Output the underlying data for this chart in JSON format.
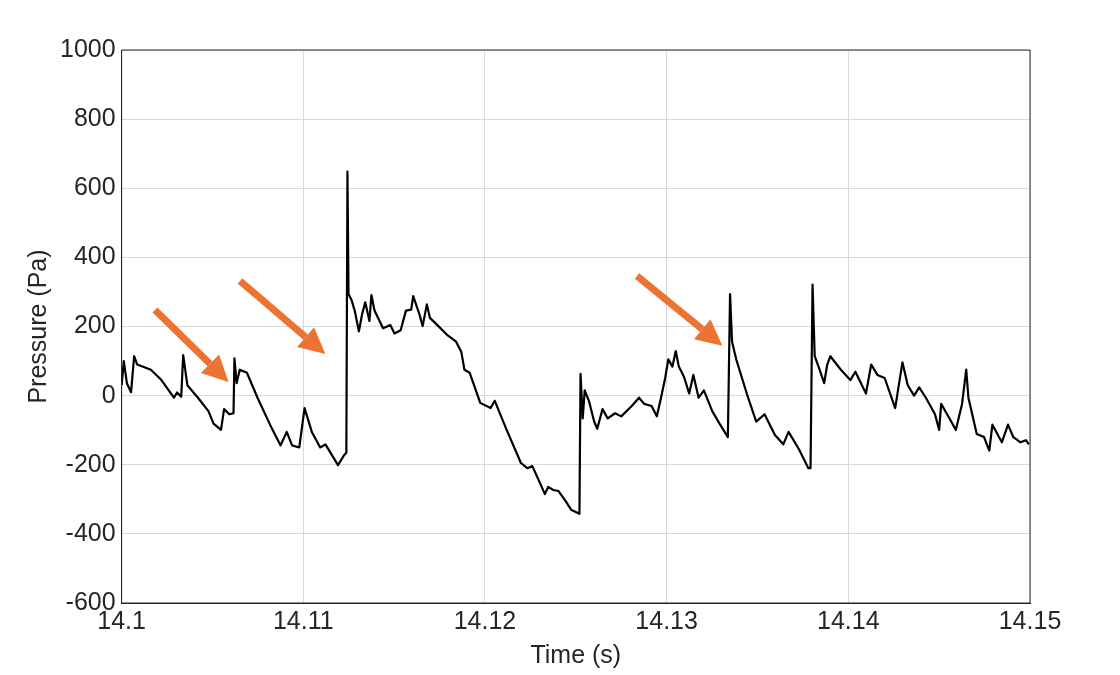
{
  "chart_data": {
    "type": "line",
    "xlabel": "Time (s)",
    "ylabel": "Pressure (Pa)",
    "xlim": [
      14.1,
      14.15
    ],
    "xticks": [
      14.1,
      14.11,
      14.12,
      14.13,
      14.14,
      14.15
    ],
    "ylim": [
      -600,
      1000
    ],
    "yticks": [
      -600,
      -400,
      -200,
      0,
      200,
      400,
      600,
      800,
      1000
    ],
    "grid": true,
    "legend": false,
    "marker": "none",
    "line_style": "solid",
    "series": [
      {
        "color": "#000000",
        "x": [
          14.1,
          14.10012,
          14.10029,
          14.10052,
          14.10069,
          14.10086,
          14.10161,
          14.10219,
          14.10288,
          14.10305,
          14.10328,
          14.10339,
          14.10362,
          14.1042,
          14.10478,
          14.10506,
          14.10547,
          14.10564,
          14.10593,
          14.10616,
          14.10621,
          14.10633,
          14.1065,
          14.1069,
          14.10748,
          14.10817,
          14.10875,
          14.10909,
          14.10938,
          14.10978,
          14.11007,
          14.11047,
          14.11093,
          14.11122,
          14.11191,
          14.11226,
          14.11237,
          14.11243,
          14.11249,
          14.11266,
          14.11283,
          14.11306,
          14.11323,
          14.11341,
          14.11364,
          14.11375,
          14.11392,
          14.11439,
          14.11479,
          14.11502,
          14.11536,
          14.11565,
          14.11594,
          14.11605,
          14.1164,
          14.11657,
          14.1168,
          14.11697,
          14.11738,
          14.11795,
          14.11841,
          14.1187,
          14.11887,
          14.11916,
          14.11974,
          14.12031,
          14.12054,
          14.12117,
          14.12198,
          14.12233,
          14.12261,
          14.1233,
          14.12348,
          14.12376,
          14.12405,
          14.12445,
          14.12474,
          14.1252,
          14.12526,
          14.12538,
          14.12549,
          14.12572,
          14.12601,
          14.12618,
          14.12647,
          14.12676,
          14.12716,
          14.1275,
          14.12808,
          14.12848,
          14.12877,
          14.12917,
          14.12946,
          14.12969,
          14.12992,
          14.13009,
          14.13032,
          14.1305,
          14.13067,
          14.13096,
          14.13124,
          14.13147,
          14.13176,
          14.13205,
          14.13251,
          14.13291,
          14.13337,
          14.13349,
          14.1336,
          14.13383,
          14.13441,
          14.13493,
          14.13539,
          14.13596,
          14.13642,
          14.13671,
          14.13729,
          14.1378,
          14.13792,
          14.13803,
          14.13815,
          14.13838,
          14.13867,
          14.13884,
          14.13901,
          14.13959,
          14.14011,
          14.14039,
          14.14097,
          14.14126,
          14.1416,
          14.142,
          14.14258,
          14.14275,
          14.14298,
          14.14327,
          14.14362,
          14.1439,
          14.1443,
          14.14477,
          14.145,
          14.14511,
          14.14557,
          14.14592,
          14.14626,
          14.14649,
          14.14661,
          14.14707,
          14.14747,
          14.14776,
          14.14793,
          14.14845,
          14.14879,
          14.14908,
          14.14948,
          14.14977,
          14.14994
        ],
        "values": [
          30,
          100,
          36,
          10,
          114,
          90,
          75,
          45,
          -6,
          9,
          -3,
          117,
          30,
          -6,
          -45,
          -81,
          -99,
          -39,
          -54,
          -51,
          108,
          36,
          75,
          66,
          -6,
          -84,
          -144,
          -105,
          -144,
          -150,
          -36,
          -105,
          -150,
          -141,
          -201,
          -171,
          -165,
          648,
          294,
          276,
          246,
          186,
          234,
          270,
          216,
          291,
          246,
          195,
          204,
          180,
          189,
          246,
          249,
          288,
          234,
          201,
          264,
          225,
          204,
          174,
          156,
          126,
          75,
          66,
          -21,
          -36,
          -15,
          -96,
          -195,
          -210,
          -204,
          -285,
          -264,
          -273,
          -276,
          -306,
          -330,
          -342,
          63,
          -66,
          15,
          -15,
          -75,
          -96,
          -39,
          -66,
          -51,
          -60,
          -30,
          -6,
          -24,
          -30,
          -60,
          -6,
          51,
          105,
          84,
          129,
          84,
          54,
          6,
          60,
          -6,
          15,
          -45,
          -81,
          -120,
          294,
          156,
          105,
          6,
          -75,
          -54,
          -114,
          -141,
          -105,
          -156,
          -210,
          -210,
          321,
          114,
          81,
          36,
          90,
          114,
          75,
          45,
          69,
          6,
          90,
          60,
          51,
          -36,
          21,
          96,
          30,
          0,
          24,
          -9,
          -54,
          -99,
          -24,
          -66,
          -99,
          -24,
          75,
          -6,
          -111,
          -120,
          -159,
          -84,
          -135,
          -84,
          -120,
          -135,
          -129,
          -141
        ]
      }
    ]
  }
}
